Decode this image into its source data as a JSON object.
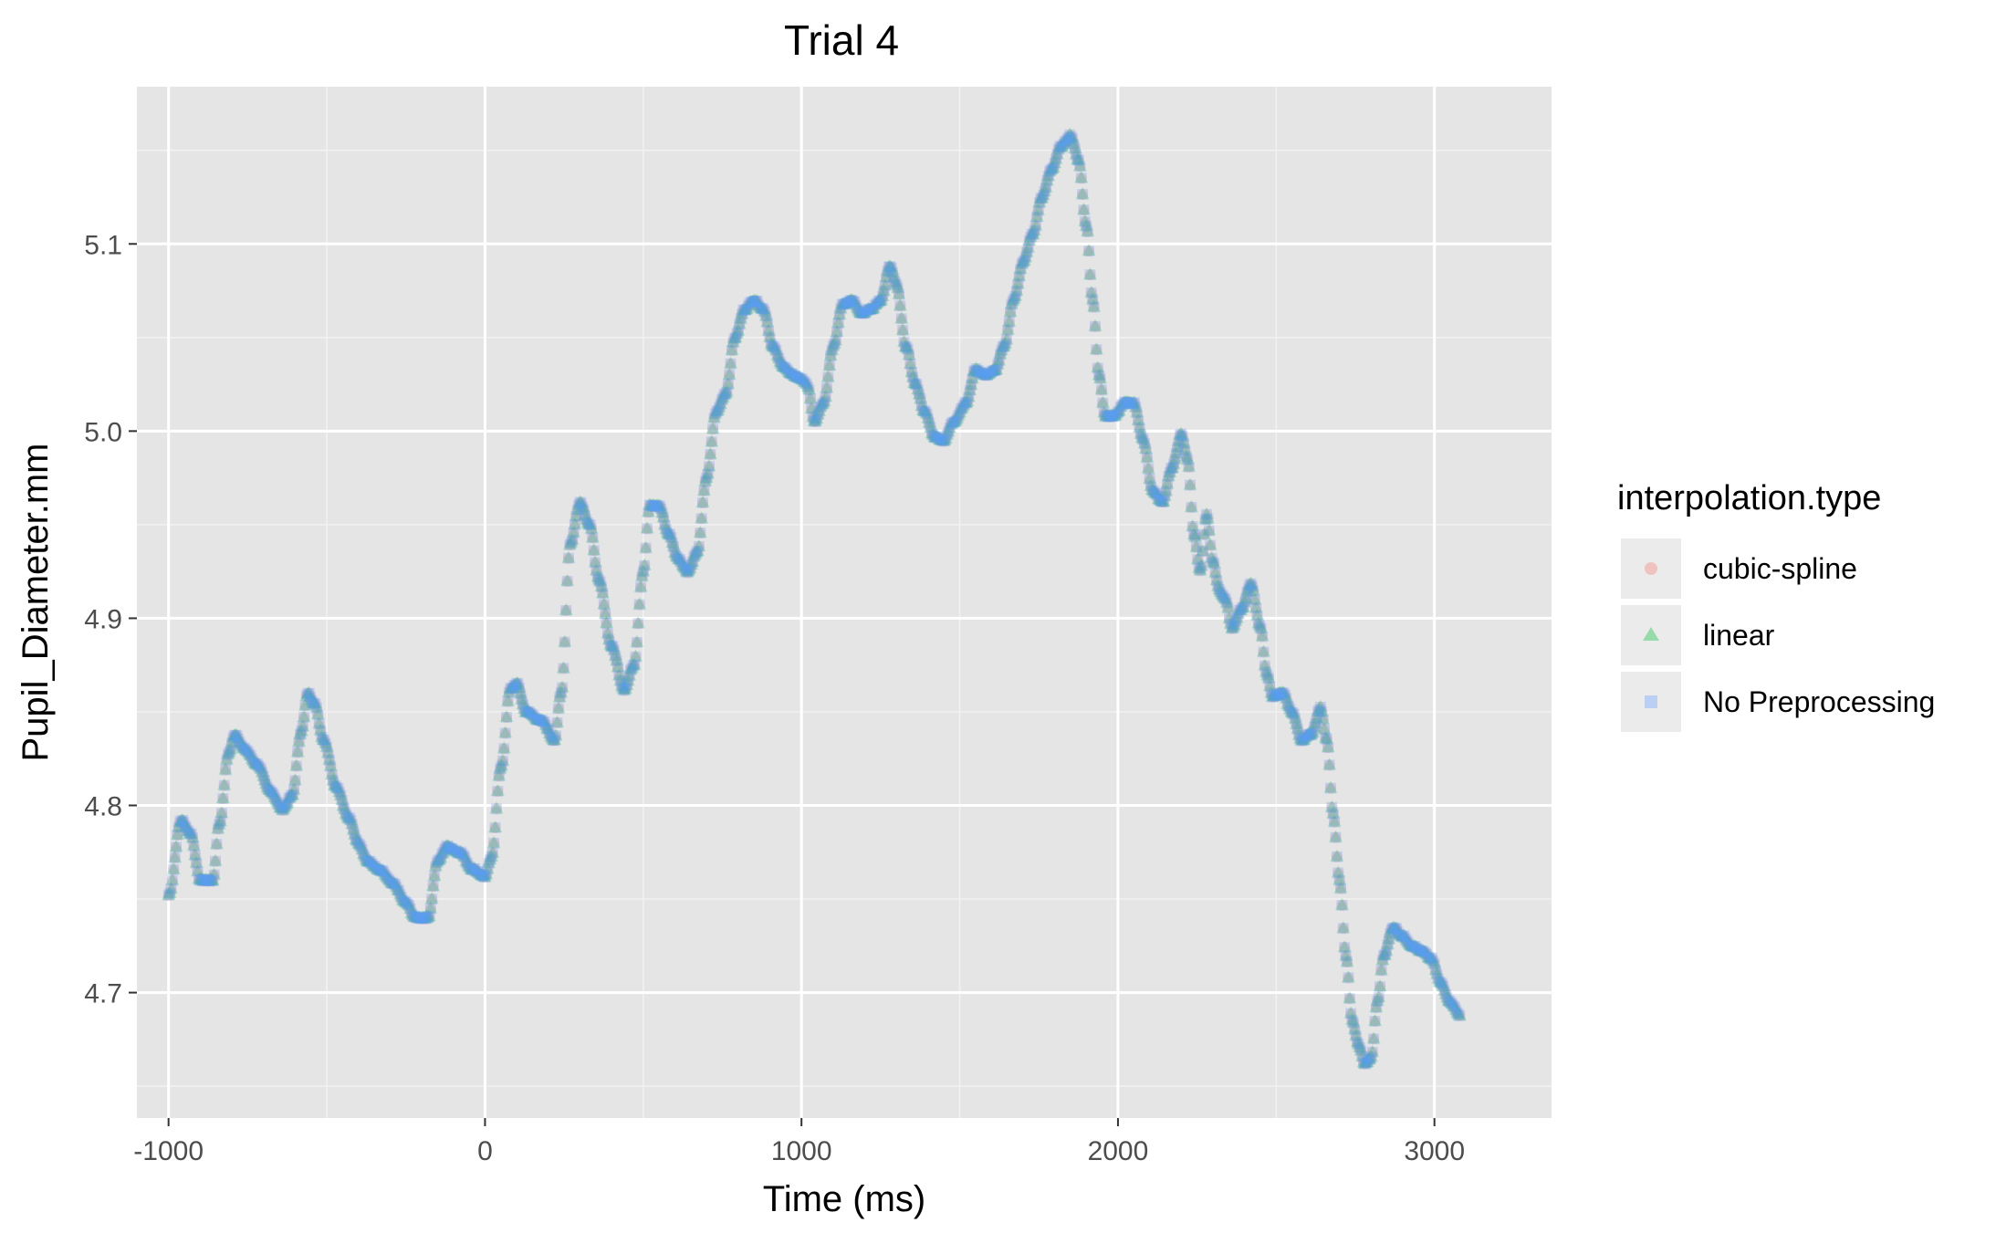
{
  "chart_data": {
    "type": "scatter",
    "title": "Trial 4",
    "xlabel": "Time (ms)",
    "ylabel": "Pupil_Diameter.mm",
    "xlim": [
      -1100,
      3370
    ],
    "ylim": [
      4.633,
      5.184
    ],
    "x_ticks": [
      -1000,
      0,
      1000,
      2000,
      3000
    ],
    "x_tick_labels": [
      "-1000",
      "0",
      "1000",
      "2000",
      "3000"
    ],
    "y_ticks": [
      4.7,
      4.8,
      4.9,
      5.0,
      5.1
    ],
    "y_tick_labels": [
      "4.7",
      "4.8",
      "4.9",
      "5.0",
      "5.1"
    ],
    "grid": true,
    "background": "#E5E5E5",
    "legend": {
      "title": "interpolation.type",
      "position": "right",
      "entries": [
        {
          "label": "cubic-spline",
          "shape": "circle",
          "color": "#F8766D"
        },
        {
          "label": "linear",
          "shape": "triangle",
          "color": "#00BA38"
        },
        {
          "label": "No Preprocessing",
          "shape": "square",
          "color": "#619CFF"
        }
      ]
    },
    "keypoints": [
      [
        -1000,
        4.752
      ],
      [
        -960,
        4.792
      ],
      [
        -930,
        4.785
      ],
      [
        -900,
        4.76
      ],
      [
        -860,
        4.76
      ],
      [
        -840,
        4.79
      ],
      [
        -810,
        4.828
      ],
      [
        -790,
        4.838
      ],
      [
        -760,
        4.83
      ],
      [
        -720,
        4.822
      ],
      [
        -680,
        4.808
      ],
      [
        -640,
        4.798
      ],
      [
        -610,
        4.805
      ],
      [
        -580,
        4.84
      ],
      [
        -560,
        4.86
      ],
      [
        -540,
        4.855
      ],
      [
        -510,
        4.835
      ],
      [
        -470,
        4.81
      ],
      [
        -430,
        4.793
      ],
      [
        -400,
        4.78
      ],
      [
        -370,
        4.77
      ],
      [
        -330,
        4.765
      ],
      [
        -290,
        4.758
      ],
      [
        -250,
        4.748
      ],
      [
        -220,
        4.74
      ],
      [
        -180,
        4.74
      ],
      [
        -150,
        4.77
      ],
      [
        -120,
        4.778
      ],
      [
        -80,
        4.775
      ],
      [
        -40,
        4.766
      ],
      [
        0,
        4.762
      ],
      [
        20,
        4.772
      ],
      [
        50,
        4.82
      ],
      [
        80,
        4.862
      ],
      [
        100,
        4.865
      ],
      [
        130,
        4.85
      ],
      [
        180,
        4.845
      ],
      [
        220,
        4.835
      ],
      [
        240,
        4.86
      ],
      [
        270,
        4.94
      ],
      [
        300,
        4.962
      ],
      [
        330,
        4.95
      ],
      [
        360,
        4.92
      ],
      [
        400,
        4.885
      ],
      [
        440,
        4.862
      ],
      [
        470,
        4.875
      ],
      [
        500,
        4.925
      ],
      [
        520,
        4.96
      ],
      [
        550,
        4.96
      ],
      [
        580,
        4.945
      ],
      [
        610,
        4.932
      ],
      [
        640,
        4.925
      ],
      [
        670,
        4.935
      ],
      [
        700,
        4.975
      ],
      [
        730,
        5.01
      ],
      [
        760,
        5.02
      ],
      [
        790,
        5.05
      ],
      [
        820,
        5.065
      ],
      [
        850,
        5.07
      ],
      [
        880,
        5.065
      ],
      [
        910,
        5.045
      ],
      [
        940,
        5.035
      ],
      [
        970,
        5.03
      ],
      [
        1000,
        5.028
      ],
      [
        1020,
        5.024
      ],
      [
        1040,
        5.005
      ],
      [
        1070,
        5.015
      ],
      [
        1100,
        5.045
      ],
      [
        1130,
        5.068
      ],
      [
        1160,
        5.07
      ],
      [
        1190,
        5.063
      ],
      [
        1220,
        5.065
      ],
      [
        1250,
        5.07
      ],
      [
        1280,
        5.088
      ],
      [
        1300,
        5.078
      ],
      [
        1330,
        5.045
      ],
      [
        1360,
        5.025
      ],
      [
        1390,
        5.01
      ],
      [
        1420,
        4.997
      ],
      [
        1450,
        4.995
      ],
      [
        1480,
        5.005
      ],
      [
        1520,
        5.015
      ],
      [
        1550,
        5.033
      ],
      [
        1580,
        5.03
      ],
      [
        1610,
        5.032
      ],
      [
        1640,
        5.045
      ],
      [
        1670,
        5.07
      ],
      [
        1700,
        5.09
      ],
      [
        1730,
        5.105
      ],
      [
        1760,
        5.125
      ],
      [
        1790,
        5.14
      ],
      [
        1820,
        5.152
      ],
      [
        1850,
        5.158
      ],
      [
        1875,
        5.145
      ],
      [
        1900,
        5.11
      ],
      [
        1920,
        5.07
      ],
      [
        1940,
        5.03
      ],
      [
        1960,
        5.008
      ],
      [
        1990,
        5.008
      ],
      [
        2020,
        5.015
      ],
      [
        2050,
        5.015
      ],
      [
        2080,
        4.995
      ],
      [
        2110,
        4.968
      ],
      [
        2140,
        4.962
      ],
      [
        2170,
        4.98
      ],
      [
        2200,
        4.998
      ],
      [
        2220,
        4.985
      ],
      [
        2240,
        4.945
      ],
      [
        2260,
        4.925
      ],
      [
        2280,
        4.955
      ],
      [
        2300,
        4.93
      ],
      [
        2320,
        4.915
      ],
      [
        2340,
        4.91
      ],
      [
        2360,
        4.895
      ],
      [
        2390,
        4.905
      ],
      [
        2420,
        4.918
      ],
      [
        2450,
        4.895
      ],
      [
        2470,
        4.87
      ],
      [
        2490,
        4.858
      ],
      [
        2520,
        4.86
      ],
      [
        2550,
        4.85
      ],
      [
        2580,
        4.835
      ],
      [
        2610,
        4.838
      ],
      [
        2640,
        4.852
      ],
      [
        2660,
        4.835
      ],
      [
        2680,
        4.795
      ],
      [
        2700,
        4.76
      ],
      [
        2720,
        4.72
      ],
      [
        2740,
        4.685
      ],
      [
        2760,
        4.672
      ],
      [
        2780,
        4.662
      ],
      [
        2800,
        4.665
      ],
      [
        2820,
        4.695
      ],
      [
        2840,
        4.72
      ],
      [
        2870,
        4.735
      ],
      [
        2900,
        4.73
      ],
      [
        2930,
        4.725
      ],
      [
        2960,
        4.722
      ],
      [
        2990,
        4.718
      ],
      [
        3020,
        4.705
      ],
      [
        3050,
        4.695
      ],
      [
        3080,
        4.688
      ]
    ],
    "sampling_interval_ms": 4
  }
}
